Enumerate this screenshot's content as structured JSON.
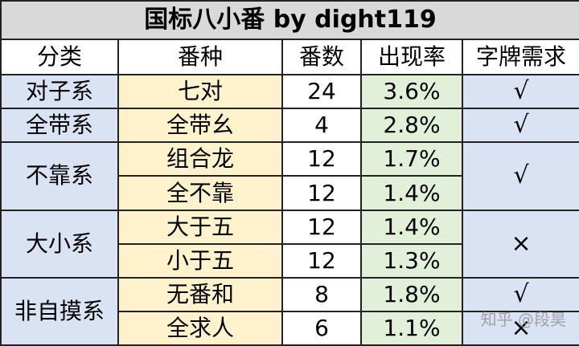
{
  "table": {
    "title": "国标八小番 by dight119",
    "headers": [
      "分类",
      "番种",
      "番数",
      "出现率",
      "字牌需求"
    ],
    "rows": [
      {
        "name": "七对",
        "fan": "24",
        "rate": "3.6%"
      },
      {
        "name": "全带幺",
        "fan": "4",
        "rate": "2.8%"
      },
      {
        "name": "组合龙",
        "fan": "12",
        "rate": "1.7%"
      },
      {
        "name": "全不靠",
        "fan": "12",
        "rate": "1.4%"
      },
      {
        "name": "大于五",
        "fan": "12",
        "rate": "1.4%"
      },
      {
        "name": "小于五",
        "fan": "12",
        "rate": "1.3%"
      },
      {
        "name": "无番和",
        "fan": "8",
        "rate": "1.8%"
      },
      {
        "name": "全求人",
        "fan": "6",
        "rate": "1.1%"
      }
    ],
    "categories": [
      "对子系",
      "全带系",
      "不靠系",
      "大小系",
      "非自摸系"
    ],
    "requirements": [
      "√",
      "√",
      "√",
      "×",
      "√",
      "×"
    ]
  },
  "watermark": "知乎 @段昊"
}
